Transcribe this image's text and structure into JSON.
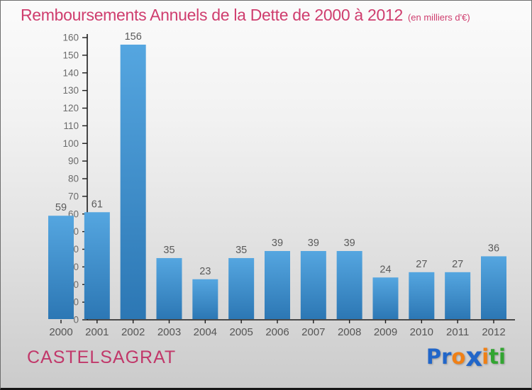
{
  "header": {
    "title": "Remboursements Annuels de la Dette de 2000 à 2012",
    "subtitle": "(en milliers d'€)",
    "title_color": "#cf3d6e"
  },
  "footer": {
    "location": "CASTELSAGRAT",
    "location_color": "#c1386a",
    "logo_name": "Proxiti",
    "logo_letters": [
      {
        "ch": "P",
        "color": "#2166c9",
        "big": false
      },
      {
        "ch": "r",
        "color": "#2166c9",
        "big": false
      },
      {
        "ch": "o",
        "color": "#f08016",
        "big": false
      },
      {
        "ch": "x",
        "color": "#2166c9",
        "big": true
      },
      {
        "ch": "i",
        "color": "#f08016",
        "big": false
      },
      {
        "ch": "t",
        "color": "#33a532",
        "big": false
      },
      {
        "ch": "i",
        "color": "#33a532",
        "big": false
      }
    ]
  },
  "chart_data": {
    "type": "bar",
    "title": "Remboursements Annuels de la Dette de 2000 à 2012",
    "subtitle": "(en milliers d'€)",
    "xlabel": "",
    "ylabel": "",
    "categories": [
      "2000",
      "2001",
      "2002",
      "2003",
      "2004",
      "2005",
      "2006",
      "2007",
      "2008",
      "2009",
      "2010",
      "2011",
      "2012"
    ],
    "values": [
      59,
      61,
      156,
      35,
      23,
      35,
      39,
      39,
      39,
      24,
      27,
      27,
      36
    ],
    "ylim": [
      0,
      160
    ],
    "ytick_step": 10,
    "grid": false,
    "legend": null,
    "bar_color_top": "#55a6e0",
    "bar_color_bottom": "#2c77b4",
    "axis_color": "#1c1c1c",
    "tick_label_color": "#6b6b6b",
    "value_label_color": "#5a5a5a",
    "category_label_color": "#555555"
  }
}
